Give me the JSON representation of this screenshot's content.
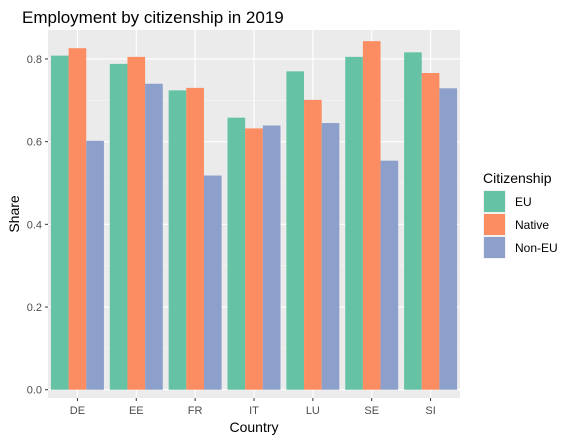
{
  "chart_data": {
    "type": "bar",
    "title": "Employment by citizenship in 2019",
    "xlabel": "Country",
    "ylabel": "Share",
    "categories": [
      "DE",
      "EE",
      "FR",
      "IT",
      "LU",
      "SE",
      "SI"
    ],
    "series": [
      {
        "name": "EU",
        "color": "#66C2A5",
        "values": [
          0.808,
          0.788,
          0.724,
          0.658,
          0.77,
          0.805,
          0.816
        ]
      },
      {
        "name": "Native",
        "color": "#FC8D62",
        "values": [
          0.826,
          0.805,
          0.73,
          0.632,
          0.701,
          0.843,
          0.766
        ]
      },
      {
        "name": "Non-EU",
        "color": "#8DA0CB",
        "values": [
          0.602,
          0.74,
          0.518,
          0.639,
          0.645,
          0.554,
          0.729
        ]
      }
    ],
    "ylim": [
      -0.02,
      0.87
    ],
    "yticks": [
      0.0,
      0.2,
      0.4,
      0.6,
      0.8
    ],
    "ytick_labels": [
      "0.0",
      "0.2",
      "0.4",
      "0.6",
      "0.8"
    ],
    "grid": true,
    "legend": {
      "title": "Citizenship",
      "position": "right"
    }
  }
}
